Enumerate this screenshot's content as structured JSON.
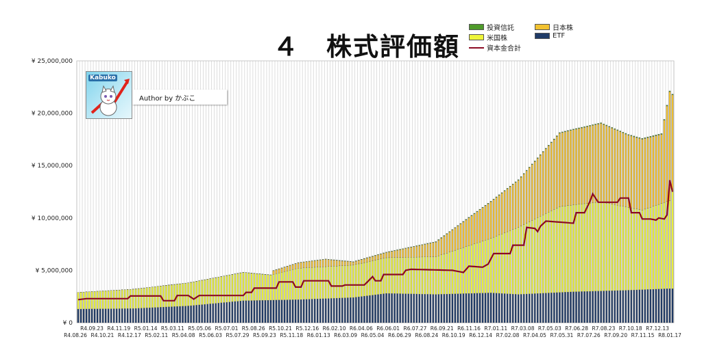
{
  "title": "４　株式評価額",
  "author": "Author by かぶこ",
  "logo_text": "Kabuko",
  "legend": [
    {
      "label": "投資信託",
      "color": "#4f9a2a",
      "kind": "bar"
    },
    {
      "label": "日本株",
      "color": "#f2c230",
      "kind": "bar"
    },
    {
      "label": "米国株",
      "color": "#eef53a",
      "kind": "bar"
    },
    {
      "label": "ETF",
      "color": "#1f3a66",
      "kind": "bar"
    },
    {
      "label": "資本金合計",
      "color": "#8b0a23",
      "kind": "line"
    }
  ],
  "chart_data": {
    "type": "bar",
    "stacked": true,
    "title": "４　株式評価額",
    "ylim": [
      0,
      25000000
    ],
    "yticks": [
      0,
      5000000,
      10000000,
      15000000,
      20000000,
      25000000
    ],
    "ytick_labels": [
      "¥ 0",
      "¥ 5,000,000",
      "¥ 10,000,000",
      "¥ 15,000,000",
      "¥ 20,000,000",
      "¥ 25,000,000"
    ],
    "grid": "vertical",
    "legend_position": "top-right",
    "xtick_labels_row1": [
      "R4.09.23",
      "R4.11.19",
      "R5.01.14",
      "R5.03.11",
      "R5.05.06",
      "R5.07.01",
      "R5.08.26",
      "R5.10.21",
      "R5.12.16",
      "R6.02.10",
      "R6.04.06",
      "R6.06.01",
      "R6.07.27",
      "R6.09.21",
      "R6.11.16",
      "R7.01.11",
      "R7.03.08",
      "R7.05.03",
      "R7.06.28",
      "R7.08.23",
      "R7.10.18",
      "R7.12.13"
    ],
    "xtick_labels_row2": [
      "R4.08.26",
      "R4.10.21",
      "R4.12.17",
      "R5.02.11",
      "R5.04.08",
      "R5.06.03",
      "R5.07.29",
      "R5.09.23",
      "R5.11.18",
      "R6.01.13",
      "R6.03.09",
      "R6.05.04",
      "R6.06.29",
      "R6.08.24",
      "R6.10.19",
      "R6.12.14",
      "R7.02.08",
      "R7.04.05",
      "R7.05.31",
      "R7.07.26",
      "R7.09.20",
      "R7.11.15",
      "R8.01.17"
    ],
    "series": [
      {
        "name": "ETF",
        "color": "#1f3a66",
        "anchors": [
          [
            0,
            1300000
          ],
          [
            20,
            1350000
          ],
          [
            40,
            1600000
          ],
          [
            60,
            2100000
          ],
          [
            80,
            2200000
          ],
          [
            100,
            2400000
          ],
          [
            112,
            2800000
          ],
          [
            130,
            2700000
          ],
          [
            150,
            2850000
          ],
          [
            160,
            2700000
          ],
          [
            180,
            2950000
          ],
          [
            200,
            3100000
          ],
          [
            215,
            3250000
          ]
        ]
      },
      {
        "name": "米国株",
        "color": "#eef53a",
        "anchors": [
          [
            0,
            1600000
          ],
          [
            20,
            1850000
          ],
          [
            40,
            2200000
          ],
          [
            60,
            2700000
          ],
          [
            70,
            2400000
          ],
          [
            80,
            3000000
          ],
          [
            100,
            3100000
          ],
          [
            112,
            3400000
          ],
          [
            130,
            3600000
          ],
          [
            150,
            5200000
          ],
          [
            160,
            6400000
          ],
          [
            175,
            8200000
          ],
          [
            190,
            8500000
          ],
          [
            205,
            7600000
          ],
          [
            215,
            8400000
          ],
          [
            216,
            9500000
          ]
        ]
      },
      {
        "name": "日本株",
        "color": "#f2c230",
        "anchors": [
          [
            0,
            0
          ],
          [
            70,
            0
          ],
          [
            71,
            350000
          ],
          [
            90,
            700000
          ],
          [
            100,
            300000
          ],
          [
            112,
            500000
          ],
          [
            130,
            1400000
          ],
          [
            150,
            3500000
          ],
          [
            160,
            4500000
          ],
          [
            175,
            7000000
          ],
          [
            190,
            7500000
          ],
          [
            200,
            6900000
          ],
          [
            212,
            6600000
          ],
          [
            215,
            10400000
          ],
          [
            216,
            9000000
          ]
        ]
      },
      {
        "name": "投資信託",
        "color": "#4f9a2a",
        "anchors": [
          [
            0,
            0
          ],
          [
            215,
            80000
          ]
        ]
      }
    ],
    "line_series": {
      "name": "資本金合計",
      "color": "#8b0a23",
      "anchors": [
        [
          0,
          2200000
        ],
        [
          3,
          2300000
        ],
        [
          18,
          2300000
        ],
        [
          19,
          2550000
        ],
        [
          30,
          2550000
        ],
        [
          31,
          2100000
        ],
        [
          35,
          2100000
        ],
        [
          36,
          2600000
        ],
        [
          40,
          2600000
        ],
        [
          42,
          2250000
        ],
        [
          44,
          2600000
        ],
        [
          60,
          2600000
        ],
        [
          61,
          2900000
        ],
        [
          63,
          2900000
        ],
        [
          64,
          3300000
        ],
        [
          72,
          3300000
        ],
        [
          73,
          3900000
        ],
        [
          78,
          3900000
        ],
        [
          79,
          3400000
        ],
        [
          81,
          3400000
        ],
        [
          82,
          4000000
        ],
        [
          91,
          4000000
        ],
        [
          92,
          3500000
        ],
        [
          96,
          3500000
        ],
        [
          97,
          3600000
        ],
        [
          104,
          3600000
        ],
        [
          107,
          4400000
        ],
        [
          108,
          4000000
        ],
        [
          110,
          4000000
        ],
        [
          111,
          4600000
        ],
        [
          118,
          4600000
        ],
        [
          119,
          5000000
        ],
        [
          121,
          5100000
        ],
        [
          136,
          5000000
        ],
        [
          138,
          4900000
        ],
        [
          140,
          4800000
        ],
        [
          142,
          5400000
        ],
        [
          147,
          5300000
        ],
        [
          149,
          5600000
        ],
        [
          151,
          6600000
        ],
        [
          157,
          6600000
        ],
        [
          158,
          7400000
        ],
        [
          162,
          7400000
        ],
        [
          163,
          9100000
        ],
        [
          166,
          9000000
        ],
        [
          167,
          8700000
        ],
        [
          168,
          9200000
        ],
        [
          170,
          9700000
        ],
        [
          180,
          9500000
        ],
        [
          181,
          10500000
        ],
        [
          184,
          10500000
        ],
        [
          186,
          11600000
        ],
        [
          187,
          12300000
        ],
        [
          189,
          11500000
        ],
        [
          196,
          11500000
        ],
        [
          197,
          11900000
        ],
        [
          200,
          11900000
        ],
        [
          201,
          10500000
        ],
        [
          204,
          10500000
        ],
        [
          205,
          9900000
        ],
        [
          208,
          9900000
        ],
        [
          210,
          9800000
        ],
        [
          211,
          10000000
        ],
        [
          213,
          9900000
        ],
        [
          214,
          10300000
        ],
        [
          215,
          13600000
        ],
        [
          216,
          12500000
        ]
      ]
    },
    "bar_count": 217
  }
}
